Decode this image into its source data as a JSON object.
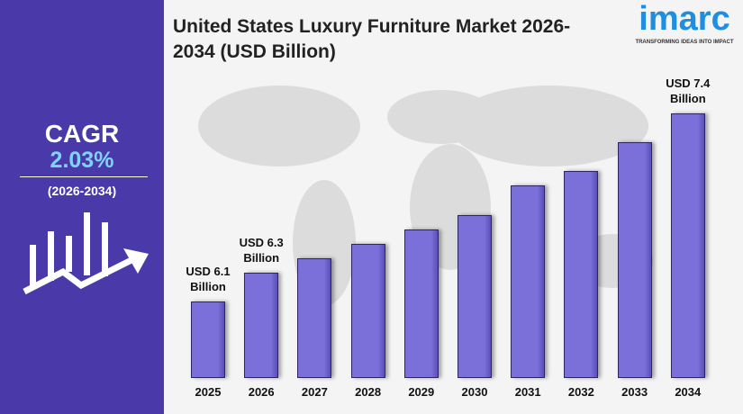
{
  "chart_data": {
    "type": "bar",
    "title": "United States Luxury Furniture Market 2026-2034 (USD Billion)",
    "categories": [
      "2025",
      "2026",
      "2027",
      "2028",
      "2029",
      "2030",
      "2031",
      "2032",
      "2033",
      "2034"
    ],
    "values": [
      6.1,
      6.3,
      6.4,
      6.5,
      6.6,
      6.7,
      6.9,
      7.0,
      7.2,
      7.4
    ],
    "value_labels": [
      "USD 6.1 Billion",
      "USD 6.3 Billion",
      null,
      null,
      null,
      null,
      null,
      null,
      null,
      "USD 7.4 Billion"
    ],
    "color": "#7b6fd9"
  },
  "cagr": {
    "label": "CAGR",
    "value": "2.03%",
    "period": "(2026-2034)"
  },
  "logo": {
    "name": "imarc",
    "tagline": "TRANSFORMING IDEAS INTO IMPACT"
  }
}
